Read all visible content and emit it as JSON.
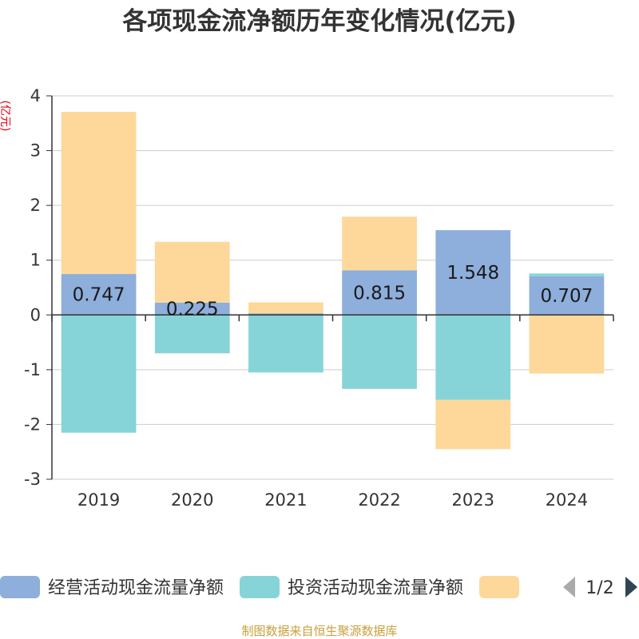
{
  "chart_data": {
    "type": "bar",
    "stacked": true,
    "title": "各项现金流净额历年变化情况(亿元)",
    "ylabel": "(亿元)",
    "xlabel": "",
    "ylim": [
      -3,
      4
    ],
    "yticks": [
      "-3",
      "-2",
      "-1",
      "0",
      "1",
      "2",
      "3",
      "4"
    ],
    "categories": [
      "2019",
      "2020",
      "2021",
      "2022",
      "2023",
      "2024"
    ],
    "series": [
      {
        "name": "经营活动现金流量净额",
        "color": "#8eaedb",
        "values": [
          0.747,
          0.225,
          0.03,
          0.815,
          1.548,
          0.707
        ],
        "labels": [
          "0.747",
          "0.225",
          "",
          "0.815",
          "1.548",
          "0.707"
        ]
      },
      {
        "name": "投资活动现金流量净额",
        "color": "#87d4d8",
        "values": [
          -2.15,
          -0.7,
          -1.05,
          -1.35,
          -1.55,
          0.05
        ]
      },
      {
        "name": "",
        "color": "#fdd89a",
        "values": [
          2.96,
          1.11,
          0.2,
          0.98,
          -0.9,
          -1.07
        ]
      }
    ],
    "grid": true,
    "legend_position": "bottom"
  },
  "legend": {
    "page": "1/2"
  },
  "footer": {
    "source": "制图数据来自恒生聚源数据库"
  }
}
